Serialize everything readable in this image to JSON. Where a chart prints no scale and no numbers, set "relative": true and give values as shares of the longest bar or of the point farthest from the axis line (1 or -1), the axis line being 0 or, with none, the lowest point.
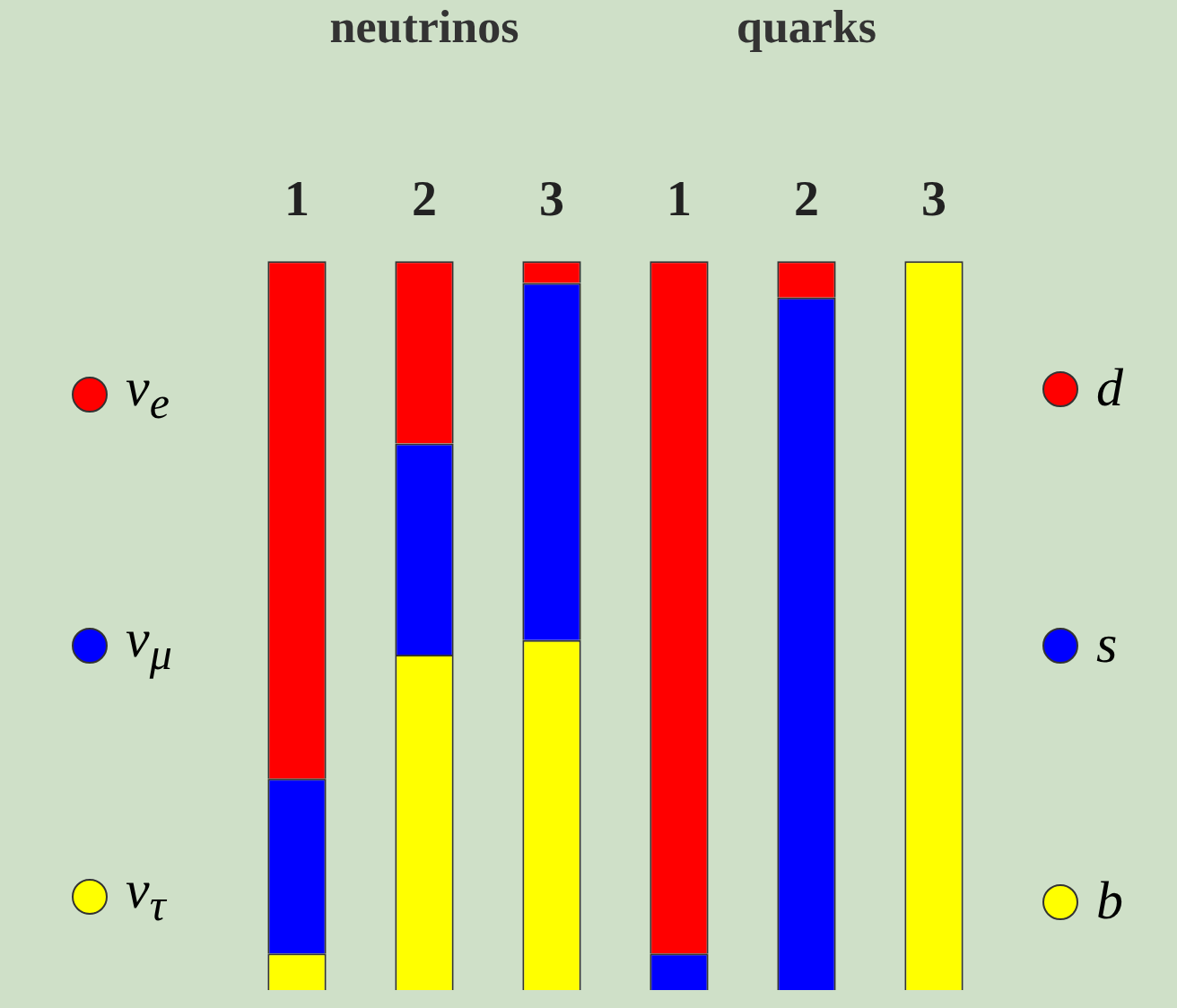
{
  "chart_data": {
    "type": "bar",
    "stacked": true,
    "relative": true,
    "grid": false,
    "legend": "left",
    "categories": [
      "1",
      "2",
      "3",
      "1",
      "2",
      "3"
    ],
    "annotations": [
      "neutrinos",
      "quarks"
    ],
    "series": [
      {
        "name": "ν$_{τ}$",
        "color": "#ffff00",
        "values": [
          0.05,
          0.46,
          0.48,
          null,
          null,
          null
        ]
      },
      {
        "name": "ν$_{μ}$",
        "color": "#0000ff",
        "values": [
          0.24,
          0.29,
          0.49,
          null,
          null,
          null
        ]
      },
      {
        "name": "ν$_{e}$",
        "color": "#ff0000",
        "values": [
          0.71,
          0.25,
          0.03,
          null,
          null,
          null
        ]
      },
      {
        "name": "b",
        "color": "#ffff00",
        "values": [
          null,
          null,
          null,
          0,
          0,
          1
        ]
      },
      {
        "name": "s",
        "color": "#0000ff",
        "values": [
          null,
          null,
          null,
          0.05,
          0.95,
          0
        ]
      },
      {
        "name": "d",
        "color": "#ff0000",
        "values": [
          null,
          null,
          null,
          0.95,
          0.05,
          0
        ]
      }
    ]
  }
}
